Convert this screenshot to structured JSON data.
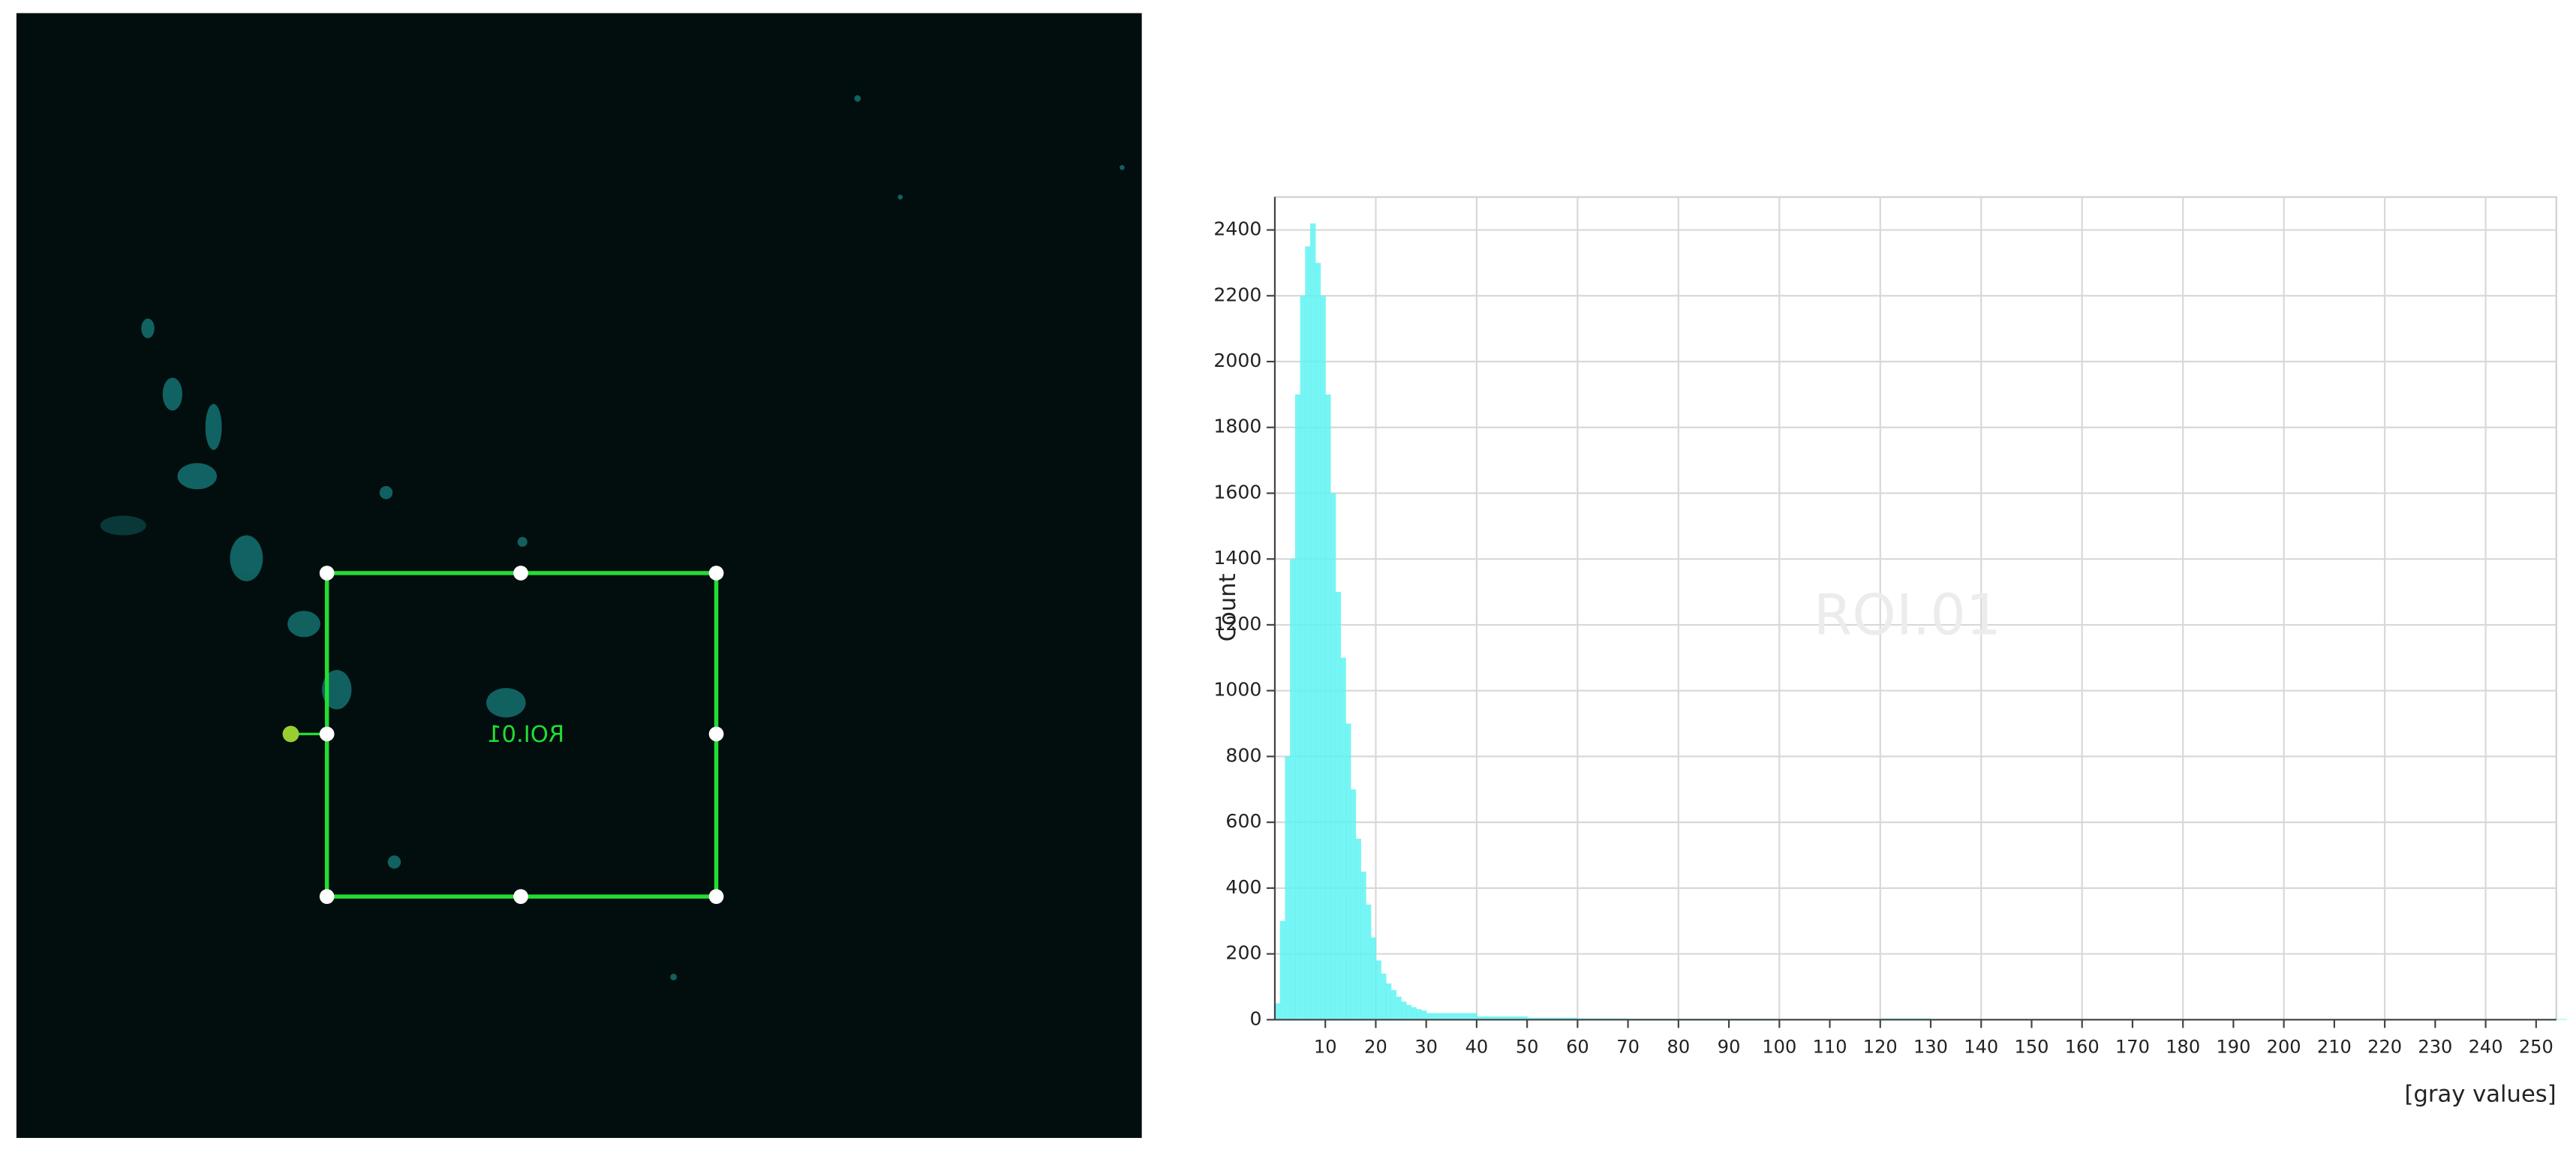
{
  "image_panel": {
    "roi_label": "ROI.01"
  },
  "chart_data": {
    "type": "histogram",
    "annotation": "ROI.01",
    "y_label": "Count",
    "x_label": "[gray values]",
    "color": "#5ff3f3",
    "bins": [
      0,
      1,
      2,
      3,
      4,
      5,
      6,
      7,
      8,
      9,
      10,
      11,
      12,
      13,
      14,
      15,
      16,
      17,
      18,
      19,
      20,
      21,
      22,
      23,
      24,
      25,
      26,
      27,
      28,
      29,
      30,
      40,
      50,
      60,
      70,
      80,
      90,
      100,
      110,
      120,
      130,
      140,
      150,
      160,
      170,
      180,
      190,
      200,
      210,
      220,
      230,
      240,
      250,
      256
    ],
    "values": [
      50,
      300,
      800,
      1400,
      1900,
      2200,
      2350,
      2420,
      2300,
      2200,
      1900,
      1600,
      1300,
      1100,
      900,
      700,
      550,
      450,
      350,
      250,
      180,
      140,
      110,
      90,
      70,
      55,
      45,
      38,
      32,
      28,
      20,
      10,
      6,
      4,
      3,
      3,
      3,
      2,
      2,
      4,
      2,
      2,
      2,
      2,
      2,
      2,
      2,
      2,
      2,
      2,
      2,
      2,
      2
    ],
    "xlim": [
      0,
      254
    ],
    "ylim": [
      0,
      2500
    ],
    "xticks": [
      10,
      20,
      30,
      40,
      50,
      60,
      70,
      80,
      90,
      100,
      110,
      120,
      130,
      140,
      150,
      160,
      170,
      180,
      190,
      200,
      210,
      220,
      230,
      240,
      250
    ],
    "yticks": [
      0,
      200,
      400,
      600,
      800,
      1000,
      1200,
      1400,
      1600,
      1800,
      2000,
      2200,
      2400
    ],
    "grid": true
  }
}
